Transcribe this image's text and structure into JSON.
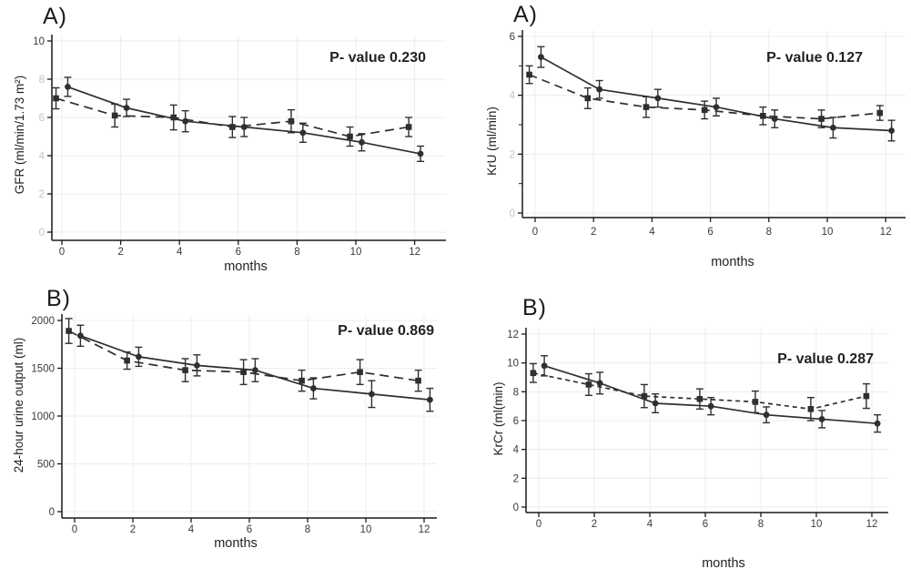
{
  "figure": {
    "background": "#ffffff",
    "description": "Four-panel line chart figure with error bars comparing two groups over 12 months"
  },
  "colors": {
    "line": "#2f2f2f",
    "axis": "#1a1a1a",
    "grid": "#ececec",
    "tick_label": "#3a3a3a",
    "faint_tick_label": "#c4c4c4",
    "text": "#222222"
  },
  "chart_data": [
    {
      "id": "gfr",
      "type": "line",
      "panel_label": "A)",
      "p_value_text": "P- value 0.230",
      "ylabel": "GFR (ml/min/1.73 m²)",
      "xlabel": "months",
      "ylim": [
        0,
        10
      ],
      "yticks": [
        10,
        8,
        6,
        4,
        2,
        0
      ],
      "xticks": [
        0,
        2,
        4,
        6,
        8,
        10,
        12
      ],
      "months": [
        0,
        2,
        4,
        6,
        8,
        10,
        12
      ],
      "grid": true,
      "legend": "none",
      "series": [
        {
          "name": "dashed",
          "line": "dashed",
          "marker": "square",
          "x_offset": -0.2,
          "values": [
            7.0,
            6.1,
            6.0,
            5.5,
            5.8,
            5.0,
            5.5
          ],
          "errors": [
            0.55,
            0.6,
            0.65,
            0.55,
            0.6,
            0.5,
            0.5
          ]
        },
        {
          "name": "solid",
          "line": "solid",
          "marker": "circle",
          "x_offset": 0.2,
          "values": [
            7.6,
            6.5,
            5.8,
            5.5,
            5.2,
            4.7,
            4.1
          ],
          "errors": [
            0.5,
            0.45,
            0.55,
            0.5,
            0.5,
            0.45,
            0.4
          ]
        }
      ]
    },
    {
      "id": "kru",
      "type": "line",
      "panel_label": "A)",
      "p_value_text": "P- value 0.127",
      "ylabel": "KrU (ml/min)",
      "xlabel": "months",
      "ylim": [
        0,
        6
      ],
      "yticks": [
        6,
        4,
        2,
        0
      ],
      "minor_yticks": [
        5,
        3,
        1
      ],
      "xticks": [
        0,
        2,
        4,
        6,
        8,
        10,
        12
      ],
      "months": [
        0,
        2,
        4,
        6,
        8,
        10,
        12
      ],
      "grid": true,
      "legend": "none",
      "series": [
        {
          "name": "dashed",
          "line": "dashed",
          "marker": "square",
          "x_offset": -0.2,
          "values": [
            4.7,
            3.9,
            3.6,
            3.5,
            3.3,
            3.2,
            3.4
          ],
          "errors": [
            0.3,
            0.35,
            0.35,
            0.3,
            0.3,
            0.3,
            0.25
          ]
        },
        {
          "name": "solid",
          "line": "solid",
          "marker": "circle",
          "x_offset": 0.2,
          "values": [
            5.3,
            4.2,
            3.9,
            3.6,
            3.2,
            2.9,
            2.8
          ],
          "errors": [
            0.35,
            0.3,
            0.3,
            0.3,
            0.3,
            0.35,
            0.35
          ]
        }
      ]
    },
    {
      "id": "urine",
      "type": "line",
      "panel_label": "B)",
      "p_value_text": "P- value 0.869",
      "ylabel": "24-hour urine output (ml)",
      "xlabel": "months",
      "ylim": [
        0,
        2000
      ],
      "yticks": [
        2000,
        1500,
        1000,
        500,
        0
      ],
      "xticks": [
        0,
        2,
        4,
        6,
        8,
        10,
        12
      ],
      "months": [
        0,
        2,
        4,
        6,
        8,
        10,
        12
      ],
      "grid": true,
      "legend": "none",
      "series": [
        {
          "name": "dashed",
          "line": "dashed",
          "marker": "square",
          "x_offset": -0.2,
          "values": [
            1890,
            1580,
            1480,
            1460,
            1370,
            1460,
            1370
          ],
          "errors": [
            130,
            90,
            120,
            130,
            110,
            130,
            110
          ]
        },
        {
          "name": "solid",
          "line": "solid",
          "marker": "circle",
          "x_offset": 0.2,
          "values": [
            1840,
            1620,
            1530,
            1480,
            1290,
            1230,
            1170
          ],
          "errors": [
            110,
            100,
            110,
            120,
            110,
            140,
            120
          ]
        }
      ]
    },
    {
      "id": "krcr",
      "type": "line",
      "panel_label": "B)",
      "p_value_text": "P- value 0.287",
      "ylabel": "KrCr (ml(min)",
      "xlabel": "months",
      "ylim": [
        0,
        12
      ],
      "yticks": [
        12,
        10,
        8,
        6,
        4,
        2,
        0
      ],
      "xticks": [
        0,
        2,
        4,
        6,
        8,
        10,
        12
      ],
      "months": [
        0,
        2,
        4,
        6,
        8,
        10,
        12
      ],
      "grid": true,
      "legend": "none",
      "series": [
        {
          "name": "dashed",
          "line": "dashed",
          "marker": "square",
          "x_offset": -0.2,
          "values": [
            9.3,
            8.5,
            7.7,
            7.5,
            7.3,
            6.8,
            7.7
          ],
          "errors": [
            0.65,
            0.75,
            0.8,
            0.7,
            0.75,
            0.8,
            0.85
          ]
        },
        {
          "name": "solid",
          "line": "solid",
          "marker": "circle",
          "x_offset": 0.2,
          "values": [
            9.8,
            8.6,
            7.2,
            7.0,
            6.4,
            6.1,
            5.8
          ],
          "errors": [
            0.7,
            0.75,
            0.65,
            0.6,
            0.55,
            0.6,
            0.6
          ]
        }
      ]
    }
  ]
}
